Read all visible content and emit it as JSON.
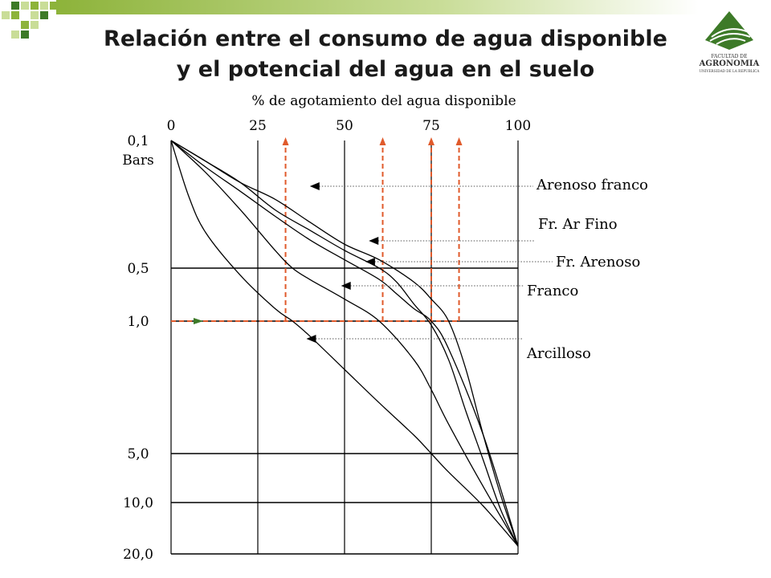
{
  "slide": {
    "title_line1": "Relación entre el consumo de agua disponible",
    "title_line2": "y el potencial del agua en el suelo"
  },
  "logo": {
    "line1": "FACULTAD DE",
    "line2": "AGRONOMIA",
    "line3": "UNIVERSIDAD DE LA REPUBLICA"
  },
  "colors": {
    "accent_green": "#8db33a",
    "dark_green": "#3d7a28",
    "reference_lines": "#e05a2b"
  },
  "chart_data": {
    "type": "line",
    "title": "Relación entre el consumo de agua disponible y el potencial del agua en el suelo",
    "xlabel": "% de agotamiento del agua disponible",
    "x_ticks": [
      0,
      25,
      50,
      75,
      100
    ],
    "x_tick_labels": [
      "0",
      "25",
      "50",
      "75",
      "100"
    ],
    "xlim": [
      0,
      100
    ],
    "y_unit": "Bars",
    "y_ticks": [
      0.1,
      0.5,
      1.0,
      5.0,
      10.0,
      20.0
    ],
    "y_tick_labels": [
      "0,1",
      "0,5",
      "1,0",
      "5,0",
      "10,0",
      "20,0"
    ],
    "y_axis_position": "left",
    "x_axis_position": "top",
    "grid": true,
    "series": [
      {
        "name": "Arenoso franco",
        "x": [
          0,
          10,
          20,
          30,
          40,
          50,
          60,
          70,
          75,
          80,
          85,
          90,
          95,
          100
        ],
        "y": [
          0.1,
          0.13,
          0.17,
          0.21,
          0.28,
          0.37,
          0.45,
          0.6,
          0.75,
          1.0,
          1.8,
          4.0,
          9.0,
          18.0
        ]
      },
      {
        "name": "Fr. Ar Fino",
        "x": [
          0,
          10,
          20,
          30,
          40,
          50,
          60,
          65,
          70,
          75,
          80,
          85,
          90,
          95,
          100
        ],
        "y": [
          0.1,
          0.13,
          0.17,
          0.24,
          0.31,
          0.4,
          0.5,
          0.6,
          0.8,
          1.05,
          1.6,
          3.0,
          5.5,
          11.0,
          18.0
        ]
      },
      {
        "name": "Fr. Arenoso",
        "x": [
          0,
          10,
          20,
          30,
          40,
          50,
          60,
          65,
          70,
          75,
          80,
          90,
          100
        ],
        "y": [
          0.1,
          0.14,
          0.19,
          0.26,
          0.35,
          0.45,
          0.58,
          0.7,
          0.85,
          1.0,
          1.4,
          4.0,
          18.0
        ]
      },
      {
        "name": "Franco",
        "x": [
          0,
          10,
          20,
          30,
          35,
          40,
          50,
          60,
          70,
          75,
          80,
          90,
          100
        ],
        "y": [
          0.1,
          0.15,
          0.24,
          0.4,
          0.5,
          0.58,
          0.75,
          1.0,
          1.6,
          2.3,
          3.5,
          8.0,
          18.0
        ]
      },
      {
        "name": "Arcilloso",
        "x": [
          0,
          5,
          10,
          20,
          30,
          35,
          40,
          50,
          60,
          70,
          75,
          80,
          90,
          100
        ],
        "y": [
          0.1,
          0.2,
          0.32,
          0.55,
          0.85,
          1.0,
          1.2,
          1.8,
          2.7,
          4.0,
          5.0,
          6.5,
          10.5,
          18.0
        ]
      }
    ],
    "legend_arrows": [
      {
        "series": "Arenoso franco",
        "label": "Arenoso franco",
        "arrow_x": 40,
        "arrow_y": 0.28
      },
      {
        "series": "Fr. Ar Fino",
        "label": "Fr. Ar Fino",
        "arrow_x": 57,
        "arrow_y": 0.44
      },
      {
        "series": "Fr. Arenoso",
        "label": "Fr. Arenoso",
        "arrow_x": 56,
        "arrow_y": 0.5
      },
      {
        "series": "Franco",
        "label": "Franco",
        "arrow_x": 49,
        "arrow_y": 0.72
      },
      {
        "series": "Arcilloso",
        "label": "Arcilloso",
        "arrow_x": 39,
        "arrow_y": 1.2
      }
    ],
    "reference_line_y": 1.0,
    "reference_lines_x": [
      33,
      61,
      75,
      83
    ]
  }
}
